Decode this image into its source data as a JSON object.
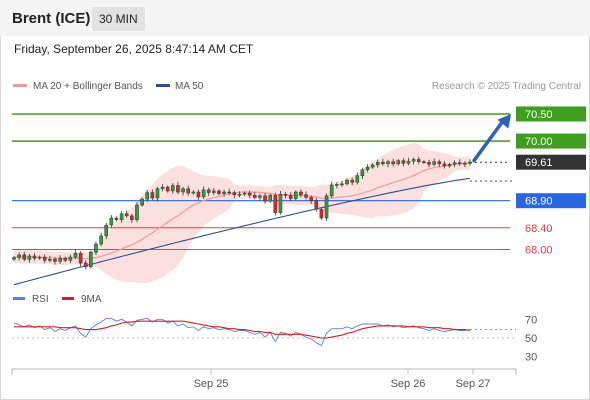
{
  "header": {
    "instrument": "Brent (ICE)",
    "timeframe": "30 MIN",
    "datetime": "Friday, September 26, 2025 8:47:14 AM CET"
  },
  "legend": {
    "ma20": "MA 20 + Bollinger Bands",
    "ma50": "MA 50",
    "credit": "Research © 2025 Trading Central",
    "rsi": "RSI",
    "rsi_ma": "9MA"
  },
  "colors": {
    "bull": "#2e9e3a",
    "bear": "#d42b2b",
    "bollinger": "#fcd9d9",
    "ma20": "#f29a9a",
    "ma50": "#2c4f96",
    "resistance": "#3f9e1f",
    "support": "#e04444",
    "pivot": "#2a66e0",
    "last": "#333333",
    "rsi": "#5b7fdc",
    "rsi_ma": "#d61f1f",
    "arrow": "#2d62b8"
  },
  "chart_data": [
    {
      "type": "candlestick",
      "yrange": [
        67.4,
        70.85
      ],
      "x_tick_labels": [
        "Sep 25",
        "Sep 26",
        "Sep 27"
      ],
      "levels": [
        {
          "value": 70.5,
          "label": "70.50",
          "kind": "resistance"
        },
        {
          "value": 70.0,
          "label": "70.00",
          "kind": "resistance"
        },
        {
          "value": 69.61,
          "label": "69.61",
          "kind": "last"
        },
        {
          "value": 68.9,
          "label": "68.90",
          "kind": "pivot"
        },
        {
          "value": 68.4,
          "label": "68.40",
          "kind": "support"
        },
        {
          "value": 68.0,
          "label": "68.00",
          "kind": "support"
        }
      ],
      "forecast_target": 70.5,
      "close": [
        67.85,
        67.9,
        67.82,
        67.88,
        67.84,
        67.86,
        67.8,
        67.82,
        67.78,
        67.84,
        67.8,
        67.86,
        67.93,
        67.75,
        67.68,
        67.95,
        68.1,
        68.25,
        68.45,
        68.58,
        68.55,
        68.66,
        68.62,
        68.55,
        68.82,
        68.93,
        69.05,
        68.95,
        69.12,
        69.15,
        69.08,
        69.18,
        69.06,
        69.12,
        69.04,
        69.06,
        68.97,
        69.1,
        69.05,
        69.08,
        69.03,
        69.06,
        69.05,
        69.01,
        69.02,
        69.04,
        69.0,
        68.96,
        68.99,
        68.89,
        69.0,
        68.68,
        69.02,
        69.0,
        68.94,
        69.06,
        69.01,
        68.96,
        68.9,
        68.74,
        68.58,
        68.99,
        69.19,
        69.2,
        69.21,
        69.28,
        69.24,
        69.36,
        69.47,
        69.52,
        69.56,
        69.61,
        69.58,
        69.62,
        69.58,
        69.64,
        69.59,
        69.63,
        69.66,
        69.62,
        69.61,
        69.57,
        69.62,
        69.58,
        69.54,
        69.57,
        69.6,
        69.58,
        69.59,
        69.61
      ],
      "ma20_end": 69.5,
      "ma50_end": 69.31
    },
    {
      "type": "line",
      "name": "RSI",
      "yrange": [
        20,
        80
      ],
      "y_ticks": [
        70,
        50,
        30
      ],
      "rsi": [
        66,
        64,
        62,
        64,
        61,
        63,
        59,
        61,
        57,
        60,
        58,
        61,
        63,
        55,
        51,
        60,
        64,
        67,
        71,
        71,
        68,
        70,
        67,
        63,
        69,
        70,
        71,
        67,
        70,
        70,
        66,
        68,
        63,
        65,
        61,
        62,
        58,
        62,
        60,
        61,
        59,
        60,
        59,
        57,
        58,
        58,
        56,
        54,
        56,
        51,
        56,
        46,
        56,
        55,
        52,
        56,
        54,
        51,
        49,
        45,
        42,
        55,
        60,
        60,
        60,
        62,
        60,
        63,
        65,
        65,
        65,
        65,
        63,
        64,
        62,
        63,
        61,
        62,
        63,
        61,
        60,
        58,
        60,
        58,
        57,
        58,
        59,
        58,
        58,
        59
      ],
      "rsi_ma": [
        62,
        62,
        62,
        62,
        62,
        62,
        62,
        62,
        62,
        61,
        61,
        61,
        61,
        60,
        59,
        59,
        59,
        60,
        61,
        63,
        64,
        66,
        67,
        67,
        68,
        68,
        68,
        68,
        68,
        68,
        68,
        68,
        68,
        68,
        67,
        66,
        65,
        64,
        63,
        62,
        62,
        61,
        60,
        60,
        59,
        59,
        58,
        57,
        57,
        56,
        56,
        54,
        54,
        54,
        54,
        54,
        54,
        53,
        52,
        51,
        50,
        50,
        51,
        52,
        53,
        55,
        56,
        58,
        60,
        61,
        62,
        63,
        63,
        63,
        63,
        63,
        63,
        62,
        62,
        62,
        62,
        61,
        61,
        61,
        60,
        60,
        59,
        59,
        59,
        58
      ]
    }
  ]
}
